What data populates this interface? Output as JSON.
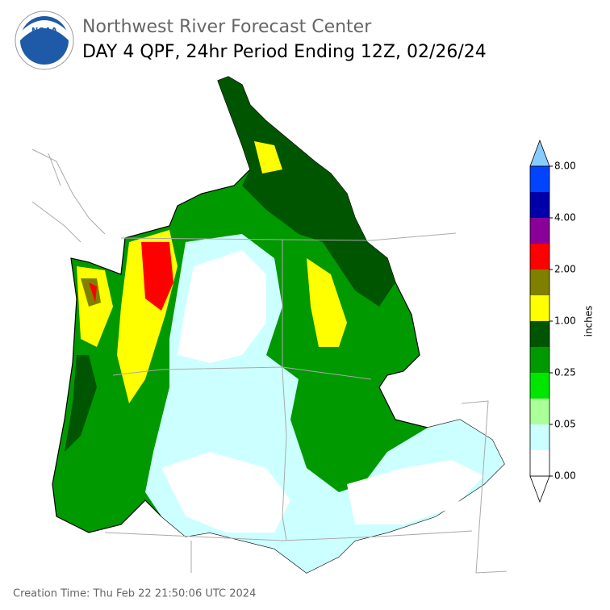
{
  "header": {
    "title": "Northwest River Forecast Center",
    "subtitle": "DAY 4 QPF, 24hr Period Ending 12Z, 02/26/24",
    "logo_text": "NOAA"
  },
  "legend": {
    "label": "inches",
    "ticks": [
      "0.00",
      "0.05",
      "0.25",
      "1.00",
      "2.00",
      "4.00",
      "8.00"
    ],
    "colors": [
      "#ffffff",
      "#ccffff",
      "#aaff99",
      "#00e600",
      "#009900",
      "#005500",
      "#ffff00",
      "#808000",
      "#ff0000",
      "#880099",
      "#0000aa",
      "#0044ff"
    ],
    "under_color": "#ffffff",
    "over_color": "#88ccff"
  },
  "footer": {
    "creation_time": "Creation Time: Thu Feb 22 21:50:06 UTC 2024"
  }
}
